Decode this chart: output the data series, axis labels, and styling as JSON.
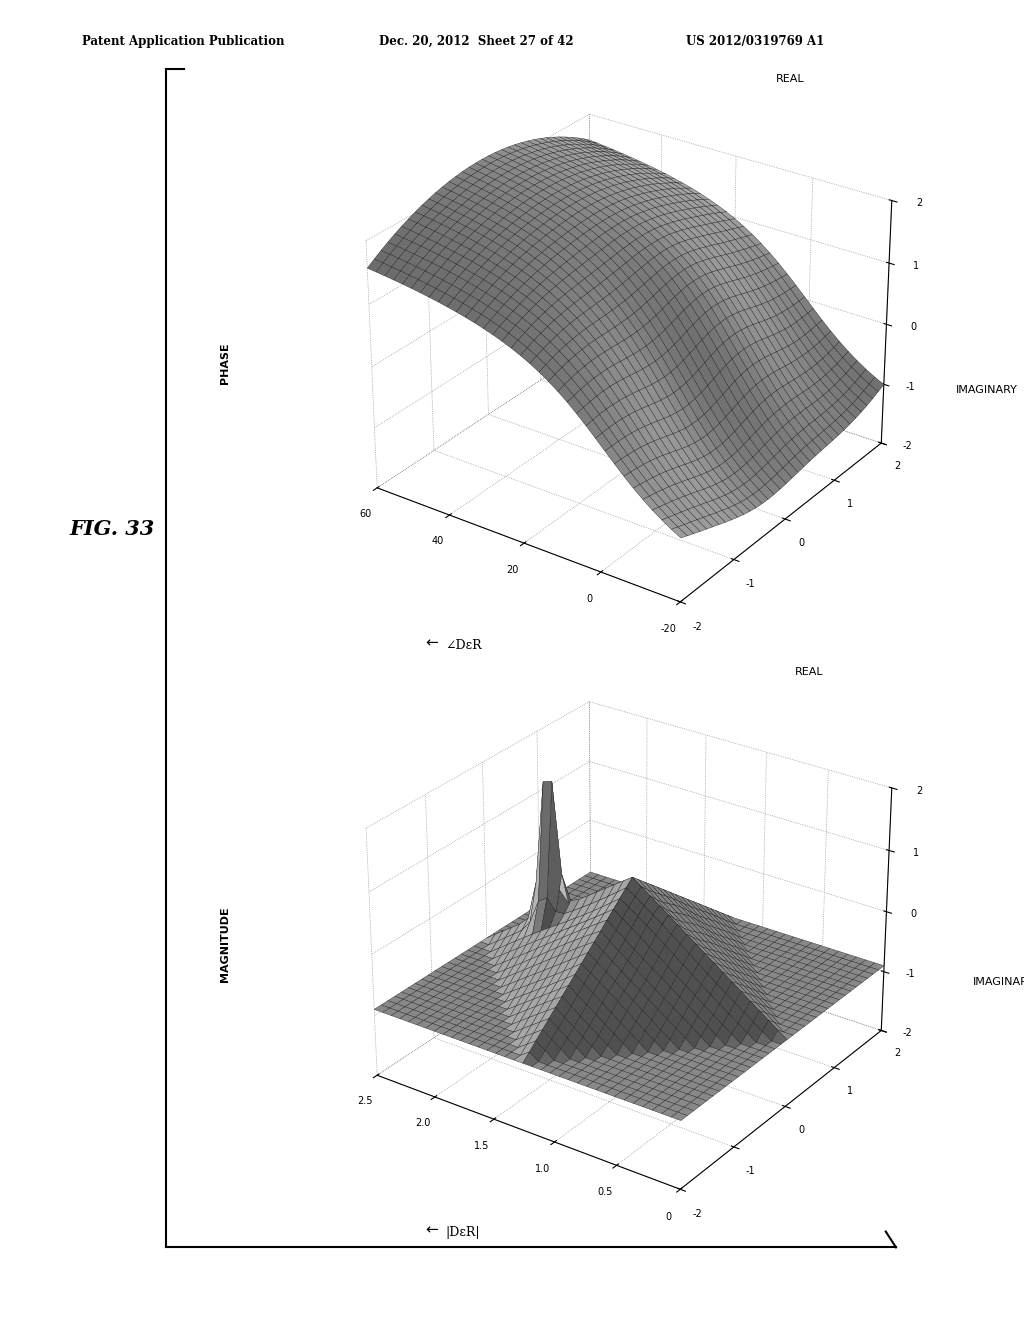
{
  "header_left": "Patent Application Publication",
  "header_mid": "Dec. 20, 2012  Sheet 27 of 42",
  "header_right": "US 2012/0319769 A1",
  "fig_label": "FIG. 33",
  "top_plot": {
    "side_label": "PHASE",
    "xlabel_sym": "∠DεR",
    "zaxis_label": "REAL",
    "yaxis_label": "IMAGINARY",
    "x_ticks": [
      60,
      40,
      20,
      0,
      -20
    ],
    "y_ticks": [
      -2,
      -1,
      0,
      1,
      2
    ],
    "z_ticks": [
      -2,
      -1,
      0,
      1,
      2
    ],
    "xlim": [
      60,
      -20
    ],
    "ylim": [
      -2,
      2
    ],
    "zlim": [
      -2,
      2
    ]
  },
  "bottom_plot": {
    "side_label": "MAGNITUDE",
    "xlabel_sym": "|DεR|",
    "zaxis_label": "REAL",
    "yaxis_label": "IMAGINARY",
    "x_ticks": [
      2.5,
      2.0,
      1.5,
      1.0,
      0.5,
      0
    ],
    "y_ticks": [
      -2,
      -1,
      0,
      1,
      2
    ],
    "z_ticks": [
      -2,
      -1,
      0,
      1,
      2
    ],
    "xlim": [
      2.5,
      0
    ],
    "ylim": [
      -2,
      2
    ],
    "zlim": [
      -2,
      2
    ]
  },
  "background_color": "#ffffff",
  "edge_color": "#111111",
  "elev1": 28,
  "azim1": -55,
  "elev2": 28,
  "azim2": -55
}
